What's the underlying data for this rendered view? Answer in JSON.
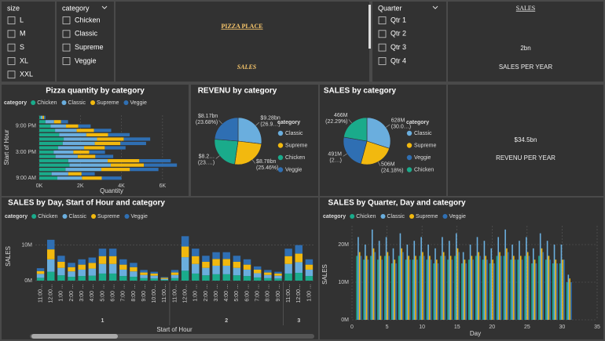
{
  "slicers": [
    {
      "title": "size",
      "items": [
        "L",
        "M",
        "S",
        "XL",
        "XXL"
      ]
    },
    {
      "title": "category",
      "items": [
        "Chicken",
        "Classic",
        "Supreme",
        "Veggie"
      ]
    },
    {
      "title": "Quarter",
      "items": [
        "Qtr 1",
        "Qtr 2",
        "Qtr 3",
        "Qtr 4"
      ]
    }
  ],
  "banner": {
    "line1": "PIZZA PLACE",
    "line2": "SALES"
  },
  "cards": [
    {
      "title": "SALES",
      "value": "2bn",
      "label": "SALES PER YEAR"
    },
    {
      "value": "$34.5bn",
      "label": "REVENU PER YEAR"
    }
  ],
  "chart_data": [
    {
      "type": "hbar",
      "title": "Pizza quantity by category",
      "legend_title": "category",
      "x_label": "Quantity",
      "y_label": "Start of Hour",
      "grid": true,
      "categories": [
        null,
        null,
        "9:00 PM",
        null,
        null,
        null,
        null,
        null,
        "3:00 PM",
        null,
        null,
        null,
        null,
        null,
        "9:00 AM"
      ],
      "xlim": [
        0,
        7000
      ],
      "xticks": [
        {
          "value": 0,
          "label": "0K"
        },
        {
          "value": 2000,
          "label": "2K"
        },
        {
          "value": 4000,
          "label": "4K"
        },
        {
          "value": 6000,
          "label": "6K"
        }
      ],
      "series": [
        {
          "name": "Chicken",
          "color": "#1aab8b",
          "values": [
            70,
            300,
            550,
            770,
            970,
            1190,
            1140,
            920,
            700,
            790,
            1410,
            1470,
            1280,
            600,
            880
          ]
        },
        {
          "name": "Classic",
          "color": "#6aaede",
          "values": [
            90,
            420,
            750,
            1050,
            1320,
            1620,
            1560,
            1260,
            960,
            1080,
            1920,
            2010,
            1740,
            810,
            1200
          ]
        },
        {
          "name": "Supreme",
          "color": "#f2b90f",
          "values": [
            70,
            340,
            600,
            840,
            1060,
            1300,
            1250,
            1010,
            770,
            860,
            1540,
            1610,
            1390,
            650,
            960
          ]
        },
        {
          "name": "Veggie",
          "color": "#2f6fb3",
          "values": [
            70,
            340,
            600,
            840,
            1050,
            1290,
            1250,
            1010,
            770,
            870,
            1530,
            1610,
            1390,
            640,
            960
          ]
        }
      ]
    },
    {
      "type": "pie",
      "title": "REVENU by category",
      "legend_title": "category",
      "categories": [
        "Classic",
        "Supreme",
        "Chicken",
        "Veggie"
      ],
      "values": [
        9.28,
        8.78,
        8.27,
        8.17
      ],
      "value_labels": [
        [
          "$9.28bn",
          "(26.9…)"
        ],
        [
          "$8.78bn",
          "(25.46%)"
        ],
        [
          "$8.2…",
          "(23.…)"
        ],
        [
          "$8.17bn",
          "(23.68%)"
        ]
      ],
      "colors": [
        "#6aaede",
        "#f2b90f",
        "#1aab8b",
        "#2f6fb3"
      ]
    },
    {
      "type": "pie",
      "title": "SALES by category",
      "legend_title": "category",
      "categories": [
        "Classic",
        "Supreme",
        "Veggie",
        "Chicken"
      ],
      "values": [
        628,
        506,
        491,
        466
      ],
      "value_labels": [
        [
          "628M",
          "(30.0…)"
        ],
        [
          "506M",
          "(24.18%)"
        ],
        [
          "491M",
          "(2…)"
        ],
        [
          "466M",
          "(22.29%)"
        ]
      ],
      "colors": [
        "#6aaede",
        "#f2b90f",
        "#2f6fb3",
        "#1aab8b"
      ]
    },
    {
      "type": "stacked_column",
      "title": "SALES by Day, Start of Hour and category",
      "legend_title": "category",
      "x_label": "Start of Hour",
      "y_label": "SALES",
      "grid": true,
      "categories": [
        "11:00…",
        "12:00…",
        "1:00 …",
        "2:00 …",
        "3:00 …",
        "4:00 …",
        "5:00 …",
        "6:00 …",
        "7:00 …",
        "8:00 …",
        "9:00 …",
        "10:00…",
        "11:00…",
        "11:00…",
        "12:00…",
        "1:00 …",
        "2:00 …",
        "3:00 …",
        "4:00 …",
        "5:00 …",
        "6:00 …",
        "7:00 …",
        "8:00 …",
        "9:00 …",
        "11:00…",
        "12:00…",
        "1:00 …"
      ],
      "category_groups": [
        "1",
        "1",
        "1",
        "1",
        "1",
        "1",
        "1",
        "1",
        "1",
        "1",
        "1",
        "1",
        "1",
        "2",
        "2",
        "2",
        "2",
        "2",
        "2",
        "2",
        "2",
        "2",
        "2",
        "2",
        "3",
        "3",
        "3"
      ],
      "ylim": [
        0,
        15000000
      ],
      "yticks": [
        {
          "value": 0,
          "label": "0M"
        },
        {
          "value": 10000000,
          "label": "10M"
        }
      ],
      "series": [
        {
          "name": "Chicken",
          "color": "#1aab8b",
          "values": [
            800000,
            2500000,
            1500000,
            1100000,
            1300000,
            1400000,
            2000000,
            2000000,
            1300000,
            1100000,
            700000,
            600000,
            200000,
            700000,
            2800000,
            2000000,
            1500000,
            1800000,
            1800000,
            1500000,
            1300000,
            900000,
            700000,
            600000,
            2000000,
            2200000,
            1300000
          ]
        },
        {
          "name": "Classic",
          "color": "#6aaede",
          "values": [
            1100000,
            3500000,
            2100000,
            1500000,
            1800000,
            2000000,
            2700000,
            2700000,
            1800000,
            1500000,
            900000,
            800000,
            300000,
            900000,
            3800000,
            2700000,
            2100000,
            2400000,
            2400000,
            2100000,
            1800000,
            1200000,
            900000,
            800000,
            2700000,
            3000000,
            1800000
          ]
        },
        {
          "name": "Supreme",
          "color": "#f2b90f",
          "values": [
            800000,
            2800000,
            1700000,
            1200000,
            1400000,
            1600000,
            2200000,
            2200000,
            1400000,
            1200000,
            700000,
            600000,
            300000,
            700000,
            3000000,
            2200000,
            1700000,
            1900000,
            1900000,
            1700000,
            1400000,
            1000000,
            700000,
            600000,
            2200000,
            2400000,
            1400000
          ]
        },
        {
          "name": "Veggie",
          "color": "#2f6fb3",
          "values": [
            800000,
            2700000,
            1700000,
            1200000,
            1500000,
            1500000,
            2100000,
            2100000,
            1500000,
            1200000,
            700000,
            500000,
            200000,
            700000,
            2900000,
            2100000,
            1700000,
            1900000,
            1900000,
            1700000,
            1500000,
            900000,
            700000,
            500000,
            2100000,
            2400000,
            1500000
          ]
        }
      ]
    },
    {
      "type": "column",
      "title": "SALES by Quarter, Day and category",
      "legend_title": "category",
      "x_label": "Day",
      "y_label": "SALES",
      "grid": true,
      "x": [
        1,
        2,
        3,
        4,
        5,
        6,
        7,
        8,
        9,
        10,
        11,
        12,
        13,
        14,
        15,
        16,
        17,
        18,
        19,
        20,
        21,
        22,
        23,
        24,
        25,
        26,
        27,
        28,
        29,
        30,
        31
      ],
      "xlim": [
        0,
        35
      ],
      "xticks": [
        0,
        5,
        10,
        15,
        20,
        25,
        30,
        35
      ],
      "ylim": [
        0,
        25000000
      ],
      "yticks": [
        {
          "value": 0,
          "label": "0M"
        },
        {
          "value": 10000000,
          "label": "10M"
        },
        {
          "value": 20000000,
          "label": "20M"
        }
      ],
      "series": [
        {
          "name": "Chicken",
          "color": "#1aab8b",
          "values": [
            17000000,
            16000000,
            17000000,
            16000000,
            17000000,
            15000000,
            17000000,
            16000000,
            16000000,
            17000000,
            16000000,
            15000000,
            17000000,
            16000000,
            17000000,
            15000000,
            16000000,
            17000000,
            16000000,
            15000000,
            17000000,
            17000000,
            16000000,
            16000000,
            17000000,
            15000000,
            17000000,
            16000000,
            15000000,
            15000000,
            10000000
          ]
        },
        {
          "name": "Classic",
          "color": "#6aaede",
          "values": [
            22000000,
            20000000,
            24000000,
            21000000,
            22000000,
            19000000,
            23000000,
            20000000,
            21000000,
            22000000,
            20000000,
            19000000,
            22000000,
            21000000,
            23000000,
            18000000,
            20000000,
            22000000,
            21000000,
            19000000,
            22000000,
            24000000,
            20000000,
            21000000,
            22000000,
            19000000,
            23000000,
            21000000,
            20000000,
            20000000,
            12000000
          ]
        },
        {
          "name": "Supreme",
          "color": "#f2b90f",
          "values": [
            18000000,
            17000000,
            19000000,
            17000000,
            18000000,
            16000000,
            19000000,
            17000000,
            17000000,
            18000000,
            17000000,
            16000000,
            18000000,
            17000000,
            19000000,
            16000000,
            17000000,
            18000000,
            17000000,
            16000000,
            18000000,
            19000000,
            17000000,
            17000000,
            18000000,
            16000000,
            19000000,
            17000000,
            16000000,
            16000000,
            11000000
          ]
        },
        {
          "name": "Veggie",
          "color": "#2f6fb3",
          "values": [
            17000000,
            16000000,
            18000000,
            16000000,
            17000000,
            15000000,
            18000000,
            16000000,
            16000000,
            17000000,
            16000000,
            15000000,
            17000000,
            16000000,
            18000000,
            15000000,
            16000000,
            17000000,
            16000000,
            15000000,
            17000000,
            18000000,
            16000000,
            16000000,
            17000000,
            15000000,
            18000000,
            16000000,
            15000000,
            16000000,
            10000000
          ]
        }
      ]
    }
  ]
}
